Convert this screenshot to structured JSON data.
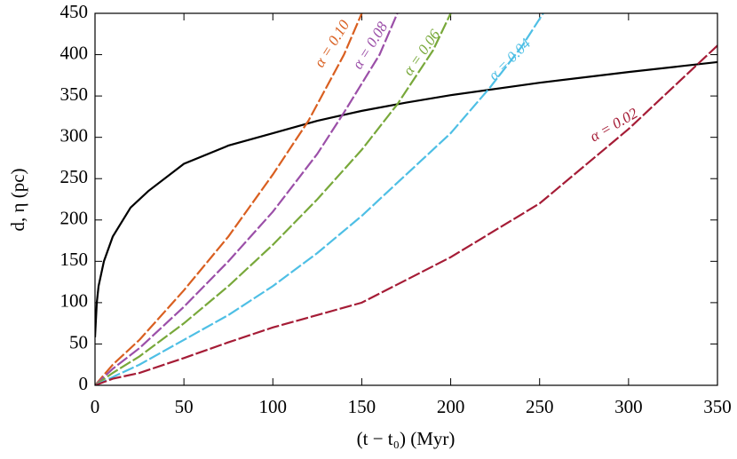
{
  "chart_data": {
    "type": "line",
    "xlabel": "(t − t₀) (Myr)",
    "ylabel": "d, η (pc)",
    "xlim": [
      0,
      350
    ],
    "xticks": [
      0,
      50,
      100,
      150,
      200,
      250,
      300,
      350
    ],
    "ylim": [
      0,
      450
    ],
    "yticks": [
      0,
      50,
      100,
      150,
      200,
      250,
      300,
      350,
      400,
      450
    ],
    "series": [
      {
        "color": "#000000",
        "dashed": false,
        "x": [
          0,
          1,
          2,
          5,
          10,
          20,
          30,
          50,
          75,
          100,
          125,
          150,
          175,
          200,
          250,
          300,
          350
        ],
        "values": [
          58,
          100,
          120,
          150,
          180,
          215,
          235,
          268,
          290,
          305,
          320,
          332,
          342,
          351,
          366,
          379,
          391
        ]
      },
      {
        "label": "α = 0.10",
        "color": "#d95f20",
        "dashed": true,
        "x": [
          0,
          10,
          25,
          50,
          75,
          100,
          120,
          140,
          150
        ],
        "values": [
          0,
          25,
          55,
          115,
          180,
          255,
          320,
          400,
          450
        ]
      },
      {
        "label": "α = 0.08",
        "color": "#9b4fa8",
        "dashed": true,
        "x": [
          0,
          10,
          25,
          50,
          75,
          100,
          125,
          140,
          160,
          170
        ],
        "values": [
          0,
          20,
          45,
          95,
          150,
          210,
          280,
          330,
          400,
          450
        ]
      },
      {
        "label": "α = 0.06",
        "color": "#78a83a",
        "dashed": true,
        "x": [
          0,
          10,
          25,
          50,
          75,
          100,
          125,
          150,
          170,
          190,
          200
        ],
        "values": [
          0,
          15,
          35,
          75,
          120,
          170,
          225,
          285,
          340,
          405,
          450
        ]
      },
      {
        "label": "α = 0.04",
        "color": "#4ebfe5",
        "dashed": true,
        "x": [
          0,
          10,
          25,
          50,
          75,
          100,
          125,
          150,
          175,
          200,
          222,
          240,
          252
        ],
        "values": [
          0,
          10,
          25,
          55,
          85,
          120,
          160,
          205,
          255,
          305,
          360,
          410,
          450
        ]
      },
      {
        "label": "α = 0.02",
        "color": "#a51c36",
        "dashed": true,
        "x": [
          0,
          10,
          25,
          50,
          75,
          100,
          150,
          200,
          250,
          300,
          350
        ],
        "values": [
          0,
          8,
          15,
          33,
          52,
          70,
          100,
          155,
          220,
          310,
          411
        ]
      }
    ]
  }
}
